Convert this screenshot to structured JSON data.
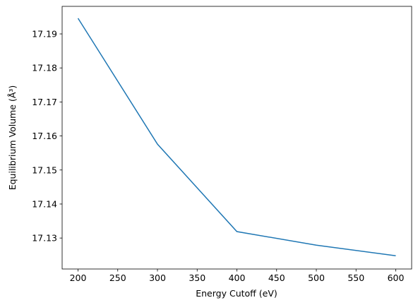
{
  "chart_data": {
    "type": "line",
    "x_label": "Energy Cutoff (eV)",
    "y_label": "Equilibrium Volume (Å³)",
    "x": [
      200,
      300,
      400,
      500,
      600
    ],
    "series": [
      {
        "color": "#1f77b4",
        "values": [
          17.1946,
          17.1576,
          17.1319,
          17.1279,
          17.1248
        ]
      }
    ],
    "xlim": [
      180,
      620
    ],
    "ylim": [
      17.1209,
      17.1981
    ],
    "xticks": [
      200,
      250,
      300,
      350,
      400,
      450,
      500,
      550,
      600
    ],
    "yticks": [
      17.13,
      17.14,
      17.15,
      17.16,
      17.17,
      17.18,
      17.19
    ]
  }
}
